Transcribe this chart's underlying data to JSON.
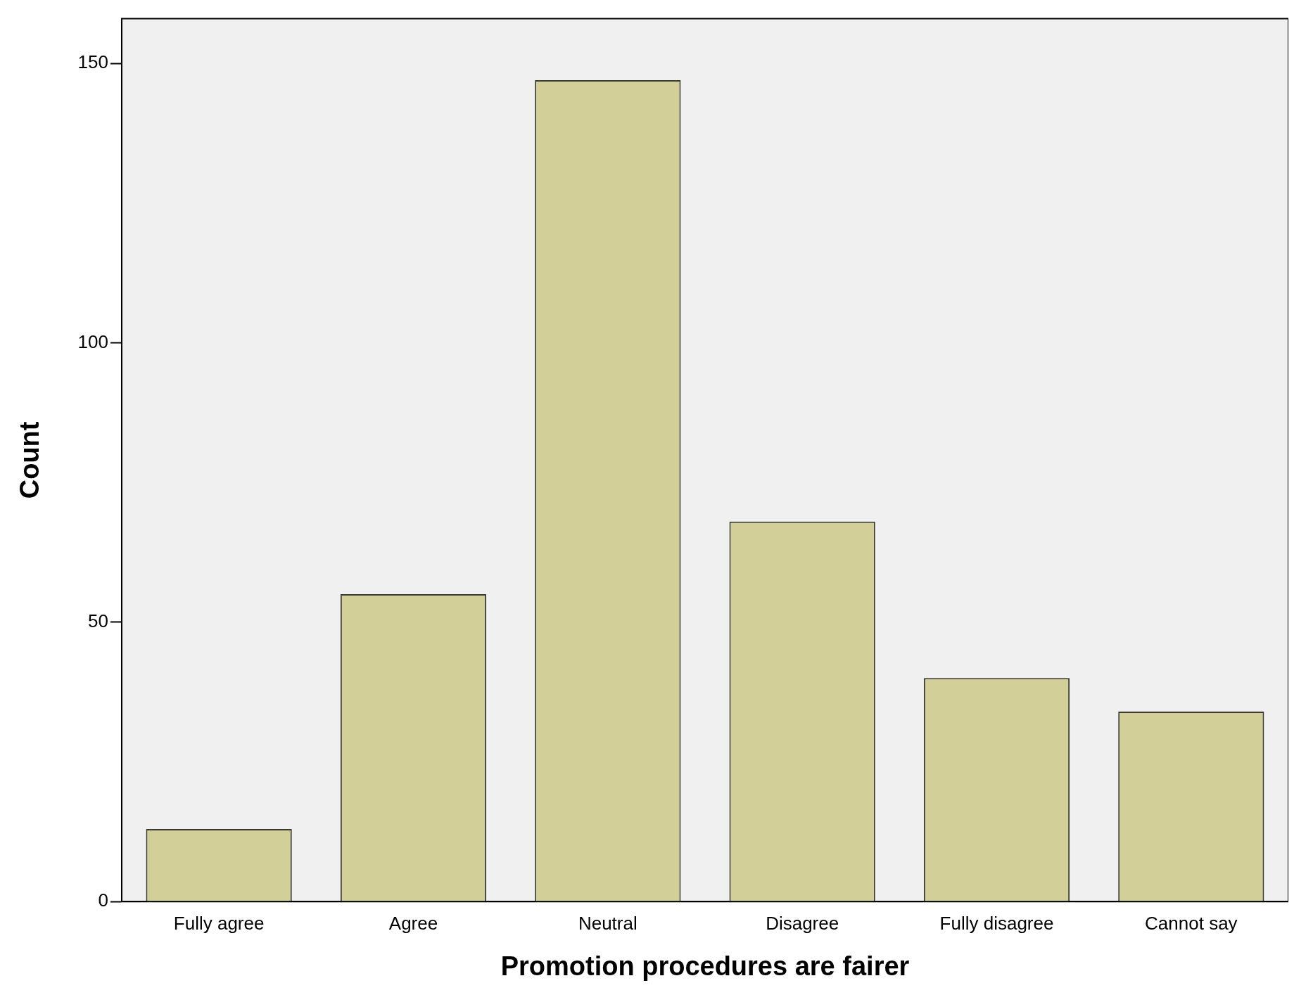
{
  "chart_data": {
    "type": "bar",
    "xlabel": "Promotion procedures are fairer",
    "ylabel": "Count",
    "categories": [
      "Fully agree",
      "Agree",
      "Neutral",
      "Disagree",
      "Fully disagree",
      "Cannot say"
    ],
    "values": [
      13,
      55,
      147,
      68,
      40,
      34
    ],
    "color": "#d3cf98",
    "ylim": [
      0,
      158
    ],
    "yticks": [
      0,
      50,
      100,
      150
    ],
    "grid": false,
    "legend": false
  }
}
